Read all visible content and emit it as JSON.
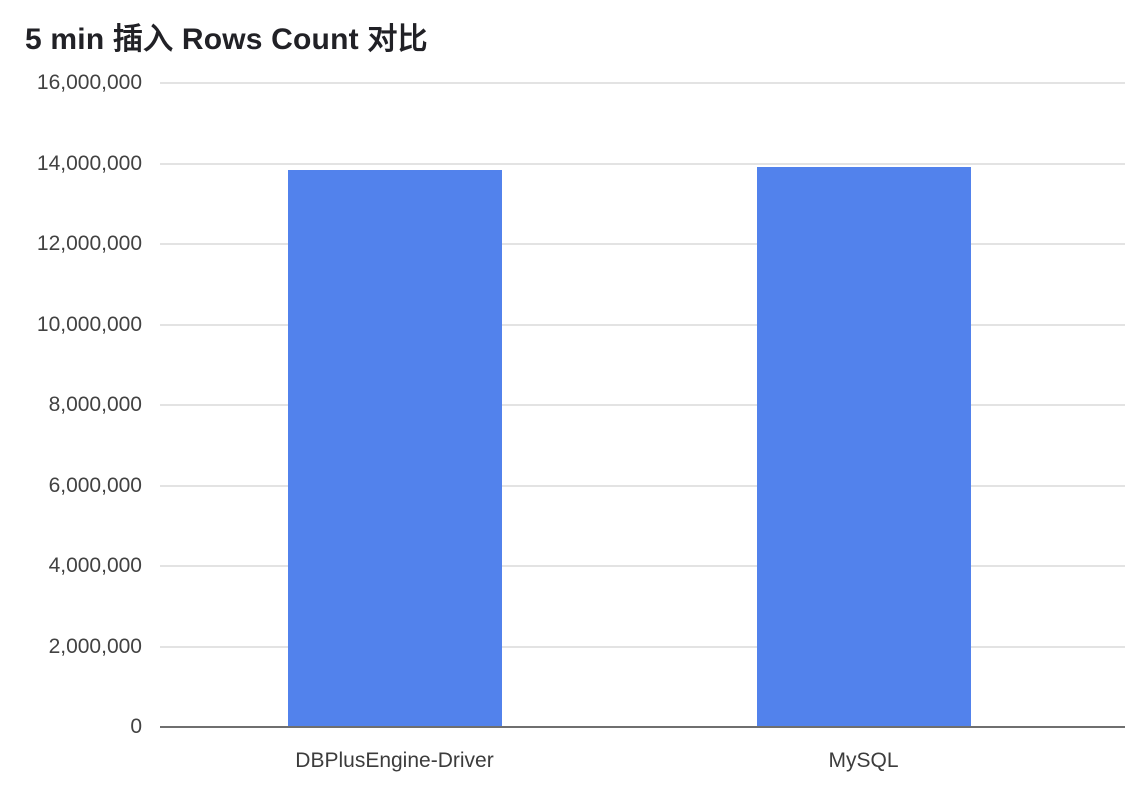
{
  "colors": {
    "bar": "#5282ec",
    "gridline": "#e3e3e3",
    "baseline": "#6f6f6f",
    "title_text": "#212126",
    "axis_text": "#424242"
  },
  "chart_data": {
    "type": "bar",
    "title": "5 min 插入 Rows Count 对比",
    "categories": [
      "DBPlusEngine-Driver",
      "MySQL"
    ],
    "values": [
      13840000,
      13920000
    ],
    "xlabel": "",
    "ylabel": "",
    "ylim": [
      0,
      16000000
    ],
    "grid": true,
    "legend": "none",
    "yticks": [
      {
        "value": 0,
        "label": "0"
      },
      {
        "value": 2000000,
        "label": "2,000,000"
      },
      {
        "value": 4000000,
        "label": "4,000,000"
      },
      {
        "value": 6000000,
        "label": "6,000,000"
      },
      {
        "value": 8000000,
        "label": "8,000,000"
      },
      {
        "value": 10000000,
        "label": "10,000,000"
      },
      {
        "value": 12000000,
        "label": "12,000,000"
      },
      {
        "value": 14000000,
        "label": "14,000,000"
      },
      {
        "value": 16000000,
        "label": "16,000,000"
      }
    ]
  }
}
